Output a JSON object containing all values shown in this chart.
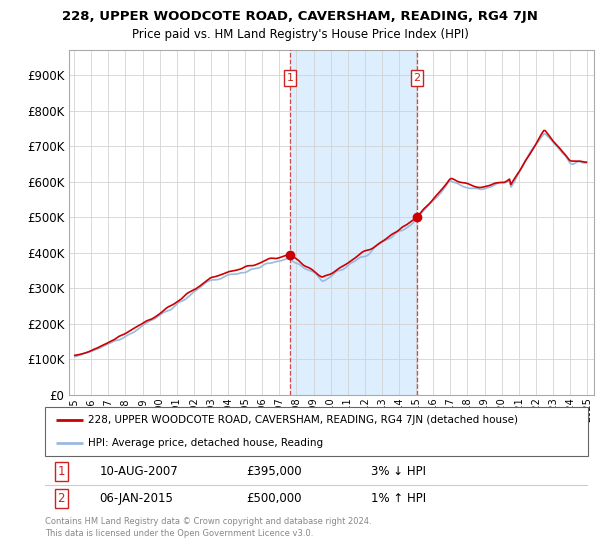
{
  "title1": "228, UPPER WOODCOTE ROAD, CAVERSHAM, READING, RG4 7JN",
  "title2": "Price paid vs. HM Land Registry's House Price Index (HPI)",
  "legend_line1": "228, UPPER WOODCOTE ROAD, CAVERSHAM, READING, RG4 7JN (detached house)",
  "legend_line2": "HPI: Average price, detached house, Reading",
  "ann1_date": "10-AUG-2007",
  "ann1_price": "£395,000",
  "ann1_pct": "3% ↓ HPI",
  "ann2_date": "06-JAN-2015",
  "ann2_price": "£500,000",
  "ann2_pct": "1% ↑ HPI",
  "footer": "Contains HM Land Registry data © Crown copyright and database right 2024.\nThis data is licensed under the Open Government Licence v3.0.",
  "line_color_red": "#cc0000",
  "line_color_blue": "#99bbdd",
  "shaded_color": "#ddeeff",
  "marker_color": "#cc0000",
  "ann_box_color": "#cc2222",
  "yticks": [
    0,
    100000,
    200000,
    300000,
    400000,
    500000,
    600000,
    700000,
    800000,
    900000
  ],
  "ylim": [
    0,
    970000
  ],
  "sale1_t": 2007.625,
  "sale1_val": 395000,
  "sale2_t": 2015.042,
  "sale2_val": 500000
}
